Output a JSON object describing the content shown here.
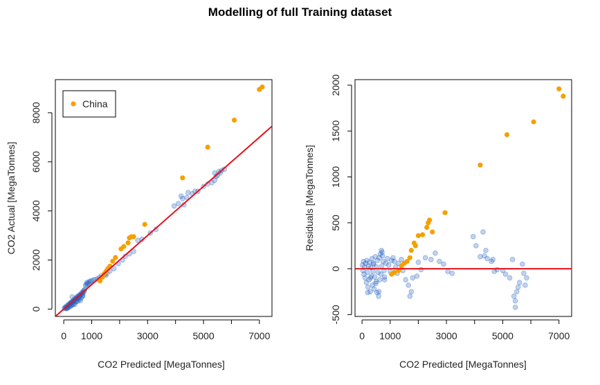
{
  "title": "Modelling of full Training dataset",
  "colors": {
    "main": "#1f5fbf",
    "china": "#f5a000",
    "fit": "#e8101a",
    "frame": "#000000"
  },
  "chart_data": [
    {
      "type": "scatter",
      "name": "actual-vs-predicted",
      "xlabel": "CO2 Predicted [MegaTonnes]",
      "ylabel": "CO2 Actual [MegaTonnes]",
      "xlim": [
        -300,
        7450
      ],
      "ylim": [
        -300,
        9350
      ],
      "xticks": [
        0,
        1000,
        3000,
        5000,
        7000
      ],
      "xtick_minor": [
        2000,
        4000,
        6000
      ],
      "yticks": [
        0,
        2000,
        4000,
        6000,
        8000
      ],
      "legend": {
        "label": "China",
        "position": "top-left"
      },
      "fit_line": {
        "type": "identity",
        "from": -300,
        "to": 7450
      },
      "series": [
        {
          "name": "",
          "style": "transparent-blue",
          "points": [
            [
              20,
              30
            ],
            [
              50,
              80
            ],
            [
              80,
              60
            ],
            [
              100,
              120
            ],
            [
              130,
              90
            ],
            [
              150,
              170
            ],
            [
              170,
              140
            ],
            [
              190,
              200
            ],
            [
              210,
              180
            ],
            [
              230,
              250
            ],
            [
              250,
              230
            ],
            [
              270,
              280
            ],
            [
              290,
              260
            ],
            [
              310,
              320
            ],
            [
              330,
              290
            ],
            [
              350,
              360
            ],
            [
              370,
              340
            ],
            [
              390,
              410
            ],
            [
              410,
              380
            ],
            [
              430,
              440
            ],
            [
              450,
              420
            ],
            [
              470,
              500
            ],
            [
              490,
              460
            ],
            [
              510,
              520
            ],
            [
              530,
              480
            ],
            [
              550,
              560
            ],
            [
              570,
              530
            ],
            [
              590,
              600
            ],
            [
              610,
              580
            ],
            [
              630,
              640
            ],
            [
              650,
              610
            ],
            [
              670,
              700
            ],
            [
              690,
              660
            ],
            [
              710,
              750
            ],
            [
              730,
              720
            ],
            [
              750,
              800
            ],
            [
              780,
              950
            ],
            [
              800,
              1000
            ],
            [
              820,
              1080
            ],
            [
              850,
              1020
            ],
            [
              880,
              1100
            ],
            [
              900,
              1050
            ],
            [
              940,
              1130
            ],
            [
              980,
              1150
            ],
            [
              1050,
              1180
            ],
            [
              1120,
              1200
            ],
            [
              1200,
              1230
            ],
            [
              1280,
              1290
            ],
            [
              1350,
              1360
            ],
            [
              1450,
              1400
            ],
            [
              1500,
              1380
            ],
            [
              1550,
              1450
            ],
            [
              1650,
              1550
            ],
            [
              1800,
              1650
            ],
            [
              1950,
              1850
            ],
            [
              2100,
              2000
            ],
            [
              2200,
              2150
            ],
            [
              2350,
              2250
            ],
            [
              2500,
              2350
            ],
            [
              2650,
              2800
            ],
            [
              2800,
              2850
            ],
            [
              3100,
              3100
            ],
            [
              3300,
              3250
            ],
            [
              3950,
              4200
            ],
            [
              4100,
              4300
            ],
            [
              4200,
              4600
            ],
            [
              4250,
              4500
            ],
            [
              4300,
              4250
            ],
            [
              4400,
              4550
            ],
            [
              4450,
              4750
            ],
            [
              4600,
              4700
            ],
            [
              4700,
              4800
            ],
            [
              4800,
              4800
            ],
            [
              5000,
              5000
            ],
            [
              5150,
              5100
            ],
            [
              5300,
              5150
            ],
            [
              5400,
              5250
            ],
            [
              5450,
              5400
            ],
            [
              5500,
              5450
            ],
            [
              5550,
              5600
            ],
            [
              5650,
              5650
            ],
            [
              5750,
              5700
            ],
            [
              5400,
              5550
            ],
            [
              5600,
              5550
            ],
            [
              300,
              500
            ],
            [
              450,
              300
            ],
            [
              600,
              350
            ],
            [
              200,
              90
            ],
            [
              100,
              20
            ],
            [
              400,
              200
            ],
            [
              520,
              430
            ],
            [
              680,
              550
            ],
            [
              120,
              40
            ],
            [
              60,
              30
            ],
            [
              280,
              150
            ],
            [
              350,
              200
            ],
            [
              420,
              300
            ],
            [
              500,
              320
            ],
            [
              560,
              400
            ],
            [
              620,
              450
            ],
            [
              680,
              520
            ],
            [
              150,
              50
            ],
            [
              250,
              120
            ],
            [
              320,
              180
            ]
          ]
        },
        {
          "name": "China",
          "style": "solid-orange",
          "points": [
            [
              1300,
              1150
            ],
            [
              1380,
              1300
            ],
            [
              1450,
              1450
            ],
            [
              1520,
              1550
            ],
            [
              1580,
              1650
            ],
            [
              1650,
              1750
            ],
            [
              1750,
              1950
            ],
            [
              1850,
              2100
            ],
            [
              2050,
              2450
            ],
            [
              2150,
              2550
            ],
            [
              2300,
              2700
            ],
            [
              2350,
              2900
            ],
            [
              2420,
              2950
            ],
            [
              2500,
              2950
            ],
            [
              2900,
              3450
            ],
            [
              4250,
              5350
            ],
            [
              5150,
              6600
            ],
            [
              6100,
              7700
            ],
            [
              7000,
              8950
            ],
            [
              7100,
              9050
            ]
          ]
        }
      ]
    },
    {
      "type": "scatter",
      "name": "residuals",
      "xlabel": "CO2 Predicted [MegaTonnes]",
      "ylabel": "Residuals [MegaTonnes]",
      "xlim": [
        -250,
        7450
      ],
      "ylim": [
        -520,
        2060
      ],
      "xticks": [
        0,
        1000,
        3000,
        5000,
        7000
      ],
      "xtick_minor": [
        2000,
        4000,
        6000
      ],
      "yticks": [
        -500,
        0,
        500,
        1000,
        1500,
        2000
      ],
      "hline": 0,
      "series": [
        {
          "name": "",
          "style": "transparent-blue",
          "points": [
            [
              10,
              40
            ],
            [
              30,
              -20
            ],
            [
              50,
              80
            ],
            [
              70,
              -60
            ],
            [
              90,
              20
            ],
            [
              110,
              -100
            ],
            [
              130,
              60
            ],
            [
              150,
              -150
            ],
            [
              170,
              90
            ],
            [
              190,
              -40
            ],
            [
              210,
              -200
            ],
            [
              230,
              30
            ],
            [
              250,
              -120
            ],
            [
              270,
              70
            ],
            [
              290,
              -250
            ],
            [
              310,
              10
            ],
            [
              330,
              -80
            ],
            [
              350,
              110
            ],
            [
              370,
              -180
            ],
            [
              390,
              -30
            ],
            [
              410,
              50
            ],
            [
              430,
              -220
            ],
            [
              450,
              -90
            ],
            [
              470,
              130
            ],
            [
              490,
              -160
            ],
            [
              510,
              20
            ],
            [
              530,
              -260
            ],
            [
              550,
              90
            ],
            [
              570,
              -40
            ],
            [
              590,
              -300
            ],
            [
              610,
              120
            ],
            [
              630,
              -120
            ],
            [
              650,
              160
            ],
            [
              670,
              -60
            ],
            [
              690,
              200
            ],
            [
              710,
              180
            ],
            [
              730,
              140
            ],
            [
              750,
              80
            ],
            [
              780,
              -20
            ],
            [
              800,
              -90
            ],
            [
              850,
              60
            ],
            [
              900,
              110
            ],
            [
              950,
              40
            ],
            [
              1000,
              -30
            ],
            [
              1050,
              90
            ],
            [
              1100,
              120
            ],
            [
              1150,
              80
            ],
            [
              1200,
              20
            ],
            [
              1250,
              -50
            ],
            [
              1300,
              60
            ],
            [
              1400,
              100
            ],
            [
              1450,
              -20
            ],
            [
              1550,
              -120
            ],
            [
              1650,
              -180
            ],
            [
              1700,
              -300
            ],
            [
              1750,
              -250
            ],
            [
              1800,
              -100
            ],
            [
              1950,
              -80
            ],
            [
              2000,
              70
            ],
            [
              2100,
              -10
            ],
            [
              2250,
              120
            ],
            [
              2450,
              100
            ],
            [
              2600,
              170
            ],
            [
              2750,
              80
            ],
            [
              2900,
              50
            ],
            [
              3050,
              -30
            ],
            [
              3200,
              -50
            ],
            [
              3950,
              350
            ],
            [
              4050,
              250
            ],
            [
              4200,
              130
            ],
            [
              4300,
              400
            ],
            [
              4350,
              140
            ],
            [
              4400,
              200
            ],
            [
              4450,
              110
            ],
            [
              4600,
              80
            ],
            [
              4650,
              100
            ],
            [
              4700,
              -30
            ],
            [
              4800,
              -10
            ],
            [
              5000,
              -20
            ],
            [
              5100,
              -60
            ],
            [
              5250,
              -100
            ],
            [
              5350,
              100
            ],
            [
              5400,
              -300
            ],
            [
              5450,
              -420
            ],
            [
              5450,
              -350
            ],
            [
              5500,
              -250
            ],
            [
              5550,
              -200
            ],
            [
              5600,
              -150
            ],
            [
              5700,
              50
            ],
            [
              5750,
              -50
            ],
            [
              5800,
              -180
            ],
            [
              5850,
              -100
            ],
            [
              200,
              -260
            ],
            [
              300,
              -100
            ],
            [
              400,
              60
            ],
            [
              500,
              -140
            ],
            [
              600,
              -250
            ],
            [
              700,
              30
            ],
            [
              800,
              -120
            ]
          ]
        },
        {
          "name": "China",
          "style": "solid-orange",
          "points": [
            [
              1050,
              -60
            ],
            [
              1150,
              -40
            ],
            [
              1300,
              -20
            ],
            [
              1400,
              30
            ],
            [
              1500,
              60
            ],
            [
              1600,
              80
            ],
            [
              1700,
              120
            ],
            [
              1750,
              200
            ],
            [
              1850,
              280
            ],
            [
              1900,
              250
            ],
            [
              2000,
              360
            ],
            [
              2150,
              370
            ],
            [
              2300,
              450
            ],
            [
              2350,
              500
            ],
            [
              2400,
              530
            ],
            [
              2500,
              400
            ],
            [
              2950,
              610
            ],
            [
              4200,
              1130
            ],
            [
              5150,
              1460
            ],
            [
              6100,
              1600
            ],
            [
              7000,
              1960
            ],
            [
              7150,
              1880
            ]
          ]
        }
      ]
    }
  ]
}
